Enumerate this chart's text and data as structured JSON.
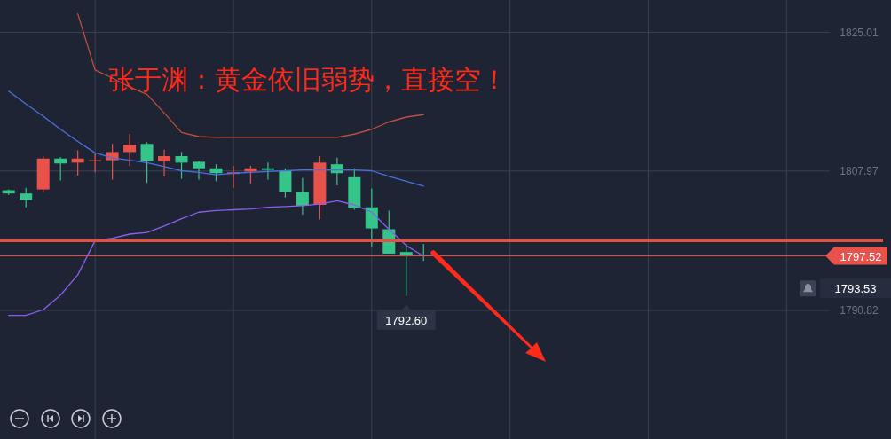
{
  "chart_data": {
    "type": "candlestick",
    "title": "张于渊：黄金依旧弱势，直接空！",
    "categories": [
      null,
      null,
      null,
      null,
      null,
      null,
      null,
      null,
      null,
      null,
      null,
      null,
      null,
      null,
      null,
      null,
      null,
      null,
      null,
      null,
      null,
      null,
      null,
      null,
      null,
      null,
      null,
      null,
      null,
      null,
      null,
      null,
      null,
      null,
      null,
      null,
      null,
      null,
      null,
      null,
      null,
      null,
      null,
      null,
      null,
      null,
      null,
      null
    ],
    "ohlc": [
      [
        1805.6,
        1805.7,
        1805.0,
        1805.2
      ],
      [
        1805.2,
        1805.9,
        1803.5,
        1804.4
      ],
      [
        1805.7,
        1809.8,
        1805.4,
        1809.5
      ],
      [
        1809.5,
        1809.7,
        1806.8,
        1808.9
      ],
      [
        1809.0,
        1810.5,
        1807.4,
        1809.5
      ],
      [
        1809.2,
        1810.2,
        1807.8,
        1809.3
      ],
      [
        1809.3,
        1811.3,
        1806.9,
        1810.3
      ],
      [
        1810.3,
        1812.5,
        1808.6,
        1811.2
      ],
      [
        1811.3,
        1811.5,
        1806.5,
        1809.2
      ],
      [
        1809.2,
        1810.6,
        1807.3,
        1809.8
      ],
      [
        1809.8,
        1810.3,
        1807.0,
        1809.0
      ],
      [
        1809.1,
        1809.2,
        1806.9,
        1808.3
      ],
      [
        1808.3,
        1808.8,
        1806.7,
        1807.7
      ],
      [
        1807.6,
        1808.6,
        1805.9,
        1807.8
      ],
      [
        1807.9,
        1808.6,
        1806.4,
        1808.3
      ],
      [
        1808.3,
        1809.0,
        1806.9,
        1808.1
      ],
      [
        1808.0,
        1808.3,
        1804.7,
        1805.4
      ],
      [
        1805.4,
        1807.1,
        1802.6,
        1803.7
      ],
      [
        1803.8,
        1809.8,
        1802.0,
        1809.0
      ],
      [
        1808.8,
        1809.6,
        1806.2,
        1807.7
      ],
      [
        1807.2,
        1808.3,
        1803.2,
        1803.4
      ],
      [
        1803.5,
        1805.8,
        1798.7,
        1800.9
      ],
      [
        1800.8,
        1803.1,
        1797.8,
        1797.8
      ],
      [
        1798.0,
        1799.0,
        1792.6,
        1797.6
      ],
      [
        1797.6,
        1799.0,
        1796.9,
        1797.52
      ],
      null,
      null,
      null,
      null,
      null,
      null,
      null,
      null,
      null,
      null,
      null,
      null,
      null,
      null,
      null,
      null,
      null,
      null,
      null,
      null,
      null,
      null,
      null
    ],
    "colors": [
      "#35c48a",
      "#35c48a",
      "#e8524a",
      "#35c48a",
      "#e8524a",
      "#e8524a",
      "#e8524a",
      "#e8524a",
      "#35c48a",
      "#e8524a",
      "#35c48a",
      "#35c48a",
      "#35c48a",
      "#e8524a",
      "#e8524a",
      "#35c48a",
      "#35c48a",
      "#35c48a",
      "#e8524a",
      "#35c48a",
      "#35c48a",
      "#35c48a",
      "#35c48a",
      "#35c48a",
      "#35c48a",
      null,
      null,
      null,
      null,
      null,
      null,
      null,
      null,
      null,
      null,
      null,
      null,
      null,
      null,
      null,
      null,
      null,
      null,
      null,
      null,
      null,
      null,
      null
    ],
    "series": [
      {
        "type": "line",
        "color": "#c0503c",
        "values": [
          null,
          null,
          null,
          null,
          1827.3,
          1820.4,
          1819.4,
          1818.3,
          1817.4,
          1815.1,
          1812.7,
          1812.2,
          1812.1,
          1812.1,
          1812.1,
          1812.1,
          1812.1,
          1812.1,
          1812.1,
          1812.1,
          1812.5,
          1813.1,
          1814.0,
          1814.6,
          1814.9,
          null,
          null,
          null,
          null,
          null,
          null,
          null,
          null,
          null,
          null,
          null,
          null,
          null,
          null,
          null,
          null,
          null,
          null,
          null,
          null,
          null,
          null,
          null
        ]
      },
      {
        "type": "line",
        "color": "#4a72dd",
        "values": [
          1817.8,
          1816.2,
          1814.7,
          1813.1,
          1811.6,
          1810.2,
          1809.6,
          1809.3,
          1809.0,
          1808.5,
          1808.0,
          1807.8,
          1807.5,
          1807.7,
          1807.8,
          1807.9,
          1808.0,
          1808.1,
          1808.1,
          1808.1,
          1808.1,
          1808.0,
          1807.3,
          1806.7,
          1806.1,
          null,
          null,
          null,
          null,
          null,
          null,
          null,
          null,
          null,
          null,
          null,
          null,
          null,
          null,
          null,
          null,
          null,
          null,
          null,
          null,
          null,
          null,
          null
        ]
      },
      {
        "type": "line",
        "color": "#8c5ef0",
        "values": [
          1790.2,
          1790.2,
          1790.9,
          1792.7,
          1795.2,
          1799.4,
          1799.7,
          1800.2,
          1800.4,
          1801.2,
          1802.1,
          1802.9,
          1803.1,
          1803.2,
          1803.3,
          1803.5,
          1803.6,
          1803.7,
          1803.9,
          1804.3,
          1803.8,
          1802.9,
          1800.8,
          1798.8,
          1797.5,
          null,
          null,
          null,
          null,
          null,
          null,
          null,
          null,
          null,
          null,
          null,
          null,
          null,
          null,
          null,
          null,
          null,
          null,
          null,
          null,
          null,
          null,
          null
        ]
      }
    ],
    "ylim": [
      1775.0,
      1829.0
    ],
    "yticks": [
      1825.01,
      1807.97,
      1790.82
    ],
    "grid": true,
    "ref_lines": [
      {
        "axis": "y",
        "value": 1799.4,
        "color": "#e0533f"
      },
      {
        "axis": "y",
        "value": 1797.52,
        "label": "1797.52",
        "color": "#e8524a"
      }
    ],
    "annotations": [
      "1792.60",
      "1793.53"
    ]
  }
}
